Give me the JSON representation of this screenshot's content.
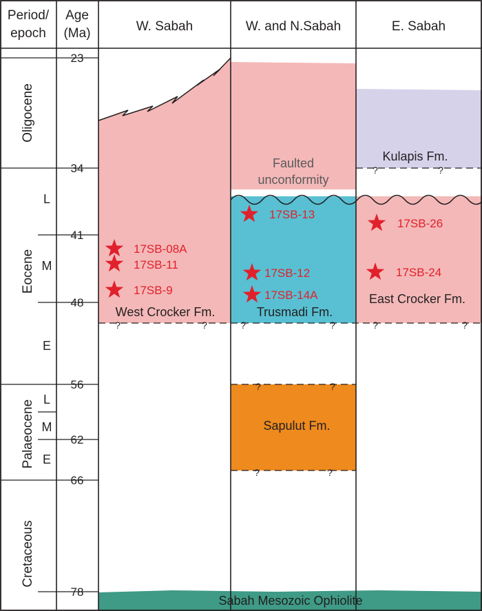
{
  "headers": {
    "period": [
      "Period/",
      "epoch"
    ],
    "age": [
      "Age",
      "(Ma)"
    ],
    "w_sabah": "W. Sabah",
    "wn_sabah": "W. and N.Sabah",
    "e_sabah": "E. Sabah"
  },
  "ages": [
    "23",
    "34",
    "41",
    "48",
    "56",
    "62",
    "66",
    "78"
  ],
  "periods": {
    "oligocene": "Oligocene",
    "eocene": "Eocene",
    "palaeocene": "Palaeocene",
    "cretaceous": "Cretaceous"
  },
  "subepochs": {
    "eocene_late": "L",
    "eocene_middle": "M",
    "eocene_early": "E",
    "palaeocene_late": "L",
    "palaeocene_middle": "M",
    "palaeocene_early": "E"
  },
  "formations": {
    "west_crocker": "West Crocker Fm.",
    "trusmadi": "Trusmadi Fm.",
    "east_crocker": "East Crocker Fm.",
    "kulapis": "Kulapis Fm.",
    "sapulut": "Sapulut Fm.",
    "ophiolite": "Sabah Mesozoic Ophiolite"
  },
  "annotations": {
    "faulted_1": "Faulted",
    "faulted_2": "unconformity",
    "uncertain": "?"
  },
  "samples": {
    "s08a": "17SB-08A",
    "s11": "17SB-11",
    "s9": "17SB-9",
    "s13": "17SB-13",
    "s12": "17SB-12",
    "s14a": "17SB-14A",
    "s26": "17SB-26",
    "s24": "17SB-24"
  },
  "colors": {
    "crocker_pink": "#f4b8b8",
    "trusmadi_cyan": "#58c0d2",
    "kulapis_lavender": "#d6d2ea",
    "sapulut_orange": "#ee8a1e",
    "ophiolite_teal": "#3f9a86",
    "sample_red": "#e0212b",
    "line": "#231f20"
  }
}
